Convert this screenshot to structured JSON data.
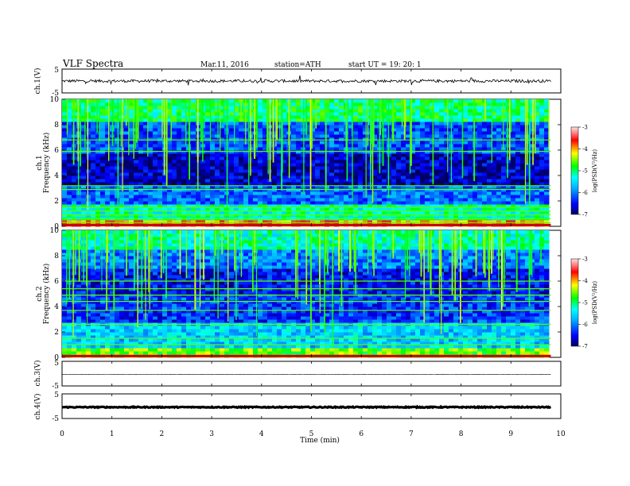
{
  "header": {
    "title": "VLF  Spectra",
    "date": "Mar.11, 2016",
    "station": "station=ATH",
    "start_ut": "start  UT  =    19: 20: 1"
  },
  "colors": {
    "spectrogram_low": "#000080",
    "spectrogram_mid": "#00ffff",
    "spectrogram_high": "#ff0000"
  },
  "chart_data": [
    {
      "type": "line",
      "id": "ch1",
      "ylabel": "ch.1(V)",
      "ylim": [
        -5,
        5
      ],
      "y_ticks": [
        "5",
        "-5"
      ],
      "xlim": [
        0,
        10
      ],
      "level": 0.0,
      "noise_amplitude": 0.6
    },
    {
      "type": "heatmap",
      "id": "spec1",
      "ylabel_top": "ch.1",
      "ylabel": "Frequency  (kHz)",
      "ylim": [
        0,
        10
      ],
      "y_ticks": [
        "0",
        "2",
        "4",
        "6",
        "8",
        "10"
      ],
      "xlim": [
        0,
        10
      ],
      "data_extent_min": 9.8,
      "colorbar": {
        "label": "log(PSD(V²/Hz)",
        "range": [
          -7,
          -3
        ],
        "ticks": [
          "-3",
          "-4",
          "-5",
          "-6",
          "-7"
        ]
      },
      "bands": [
        {
          "from": 0,
          "to": 0.4,
          "level": -4.0
        },
        {
          "from": 0.4,
          "to": 1.8,
          "level": -5.2
        },
        {
          "from": 1.8,
          "to": 3.3,
          "level": -6.1
        },
        {
          "from": 3.3,
          "to": 5.8,
          "level": -6.7
        },
        {
          "from": 5.8,
          "to": 8.2,
          "level": -6.2
        },
        {
          "from": 8.2,
          "to": 10,
          "level": -5.0
        }
      ],
      "lines_khz": [
        0.3,
        0.6,
        0.9,
        1.2,
        1.5,
        2.9,
        3.2,
        5.9,
        6.8
      ]
    },
    {
      "type": "heatmap",
      "id": "spec2",
      "ylabel_top": "ch.2",
      "ylabel": "Frequency  (kHz)",
      "ylim": [
        0,
        10
      ],
      "y_ticks": [
        "0",
        "2",
        "4",
        "6",
        "8",
        "10"
      ],
      "xlim": [
        0,
        10
      ],
      "data_extent_min": 9.8,
      "colorbar": {
        "label": "log(PSD(V²/Hz)",
        "range": [
          -7,
          -3
        ],
        "ticks": [
          "-3",
          "-4",
          "-5",
          "-6",
          "-7"
        ]
      },
      "bands": [
        {
          "from": 0,
          "to": 0.8,
          "level": -4.6
        },
        {
          "from": 0.8,
          "to": 2.8,
          "level": -5.6
        },
        {
          "from": 2.8,
          "to": 5.0,
          "level": -6.3
        },
        {
          "from": 5.0,
          "to": 7.0,
          "level": -6.5
        },
        {
          "from": 7.0,
          "to": 8.5,
          "level": -6.0
        },
        {
          "from": 8.5,
          "to": 10,
          "level": -5.2
        }
      ],
      "lines_khz": [
        1.0,
        1.5,
        2.6,
        3.7,
        4.4,
        4.9,
        5.4,
        6.0
      ]
    },
    {
      "type": "line",
      "id": "ch3",
      "ylabel": "ch.3(V)",
      "ylim": [
        -5,
        5
      ],
      "y_ticks": [
        "5",
        "-5"
      ],
      "xlim": [
        0,
        10
      ],
      "level": -0.3,
      "noise_amplitude": 0.05
    },
    {
      "type": "line",
      "id": "ch4",
      "ylabel": "ch.4(V)",
      "ylim": [
        -5,
        5
      ],
      "y_ticks": [
        "5",
        "-5"
      ],
      "xlim": [
        0,
        10
      ],
      "level": -0.4,
      "noise_amplitude": 0.2
    }
  ],
  "x_axis": {
    "label": "Time  (min)",
    "ticks": [
      "0",
      "1",
      "2",
      "3",
      "4",
      "5",
      "6",
      "7",
      "8",
      "9",
      "10"
    ]
  }
}
